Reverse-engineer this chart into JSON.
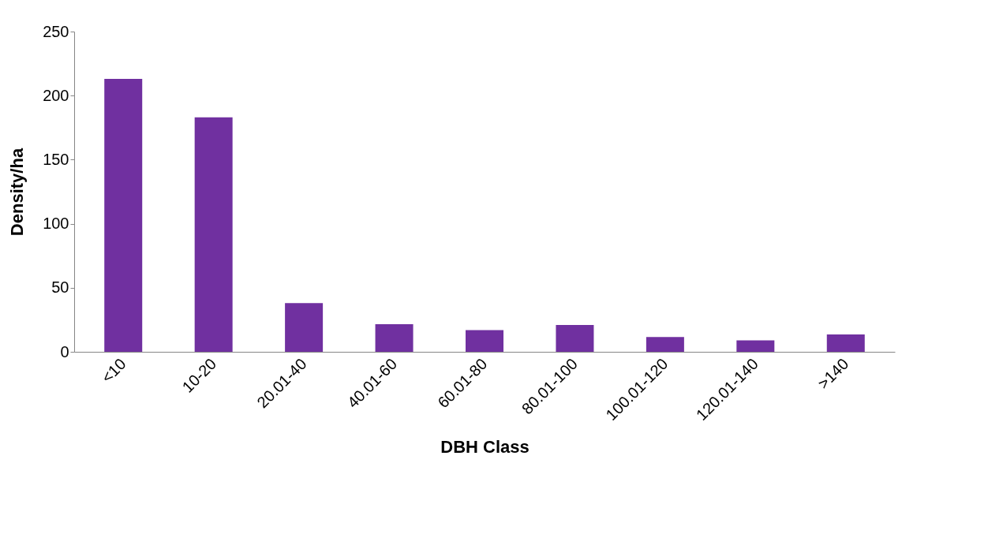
{
  "chart_data": {
    "type": "bar",
    "xlabel": "DBH Class",
    "ylabel": "Density/ha",
    "categories": [
      "<10",
      "10-20",
      "20.01-40",
      "40.01-60",
      "60.01-80",
      "80.01-100",
      "100.01-120",
      "120.01-140",
      ">140"
    ],
    "values": [
      213,
      183,
      38,
      21.5,
      17,
      21,
      11.5,
      9,
      13.5
    ],
    "color": "#7030a0",
    "ylim": [
      0,
      250
    ],
    "yticks": [
      0,
      50,
      100,
      150,
      200,
      250
    ],
    "grid": false
  }
}
